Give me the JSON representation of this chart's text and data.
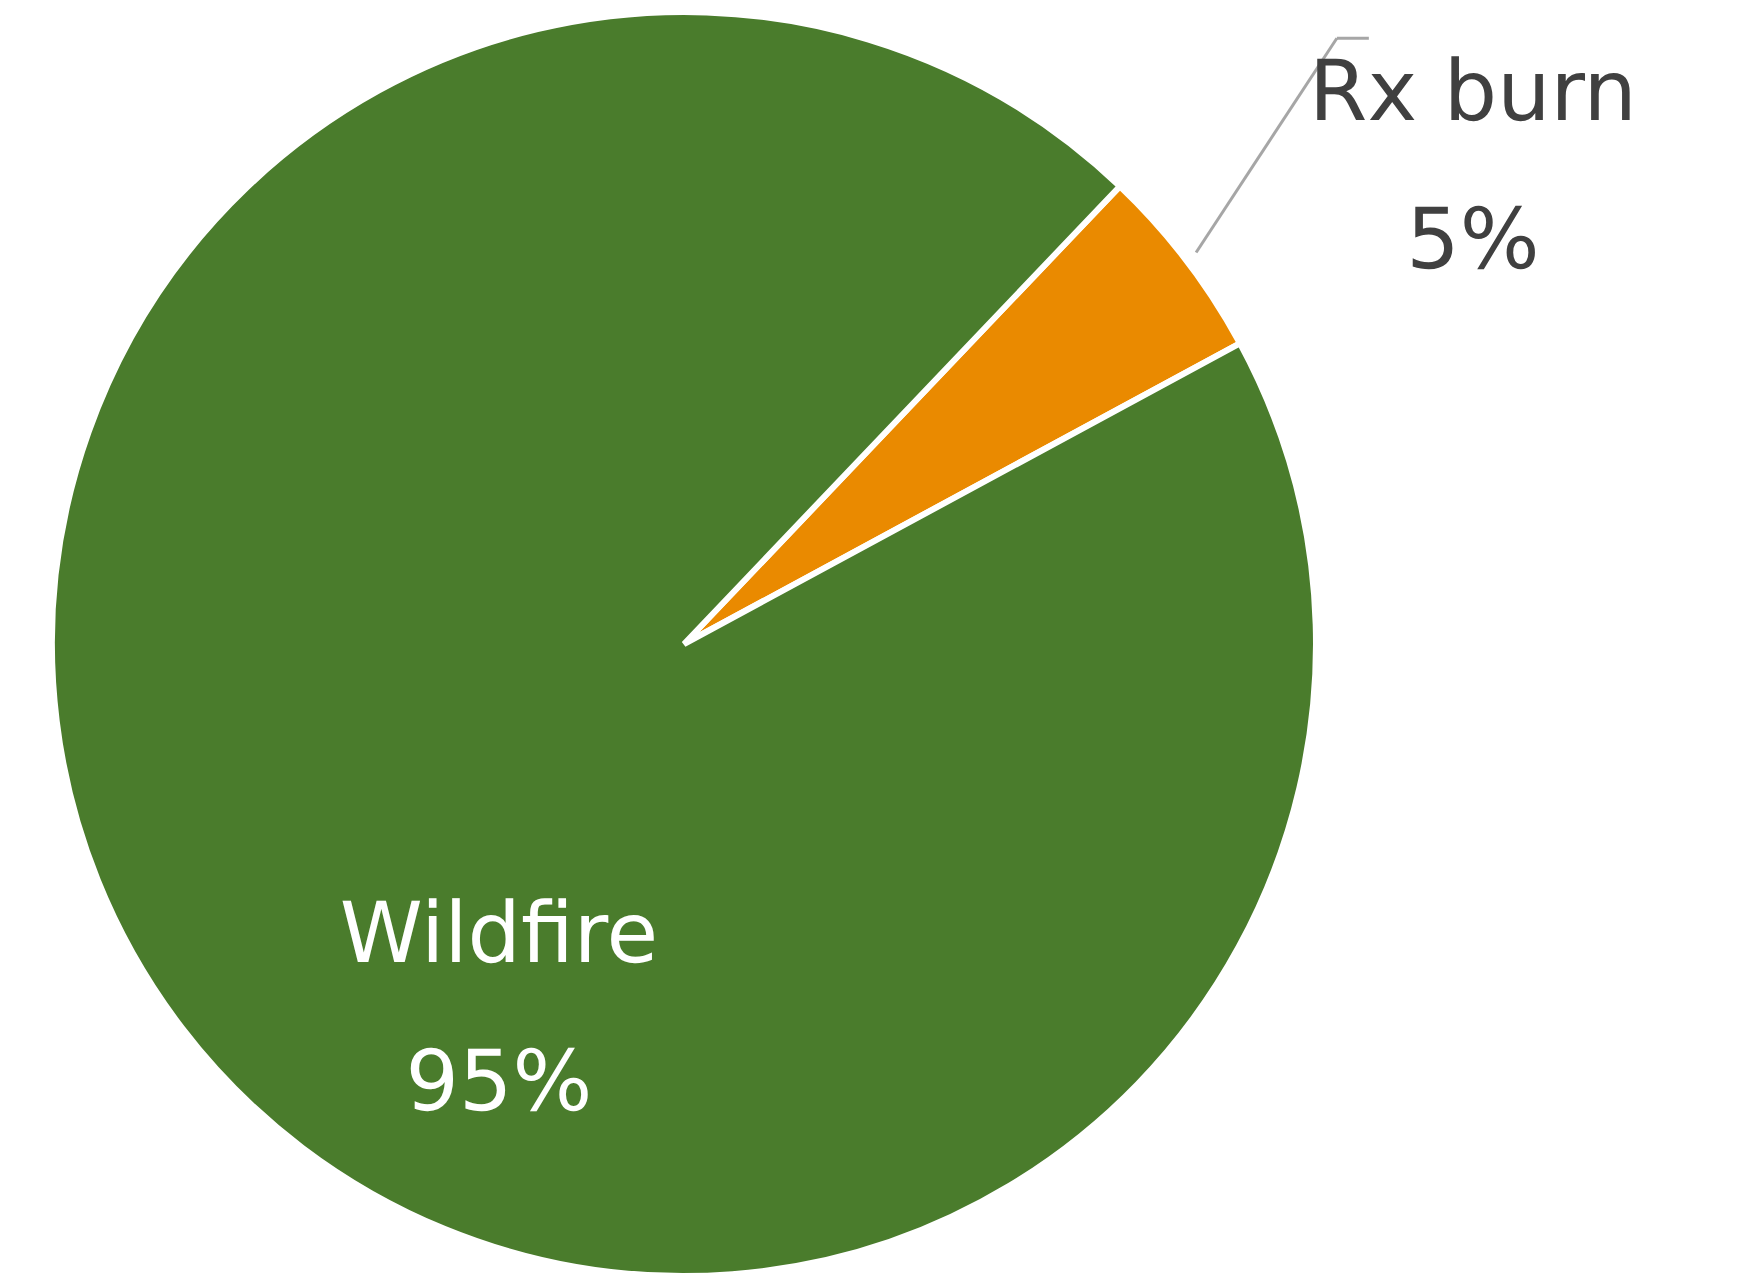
{
  "chart_data": {
    "type": "pie",
    "categories": [
      "Rx burn",
      "Wildfire"
    ],
    "values": [
      5,
      95
    ],
    "colors": [
      "#ea8a00",
      "#4a7c2c"
    ],
    "value_labels": [
      "5%",
      "95%"
    ]
  }
}
